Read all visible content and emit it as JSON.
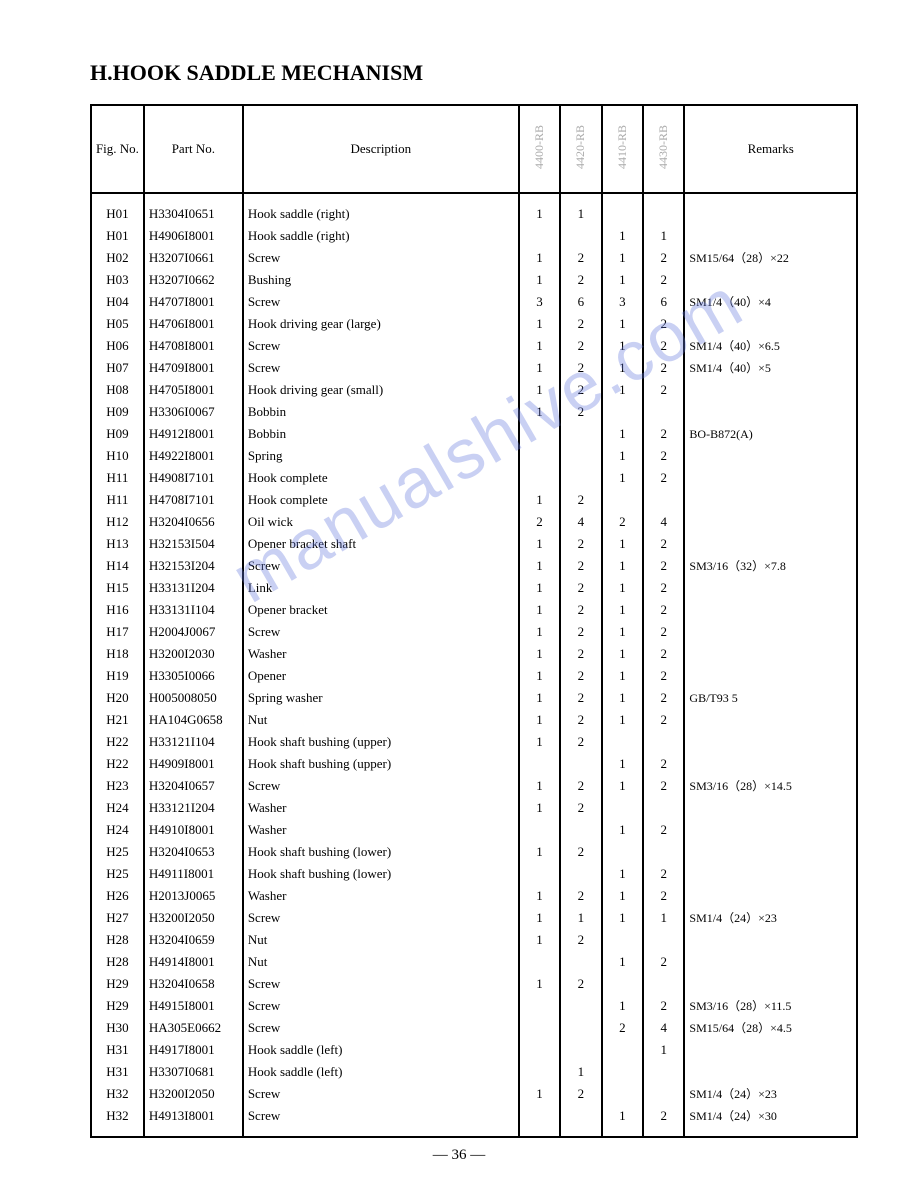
{
  "title": "H.HOOK SADDLE MECHANISM",
  "page_number": "— 36 —",
  "watermark_text": "manualshive.com",
  "columns": {
    "fig": "Fig. No.",
    "part": "Part No.",
    "desc": "Description",
    "q1": "4400-RB",
    "q2": "4420-RB",
    "q3": "4410-RB",
    "q4": "4430-RB",
    "remarks": "Remarks"
  },
  "rows": [
    {
      "fig": "H01",
      "part": "H3304I0651",
      "desc": "Hook saddle (right)",
      "q1": "1",
      "q2": "1",
      "q3": "",
      "q4": "",
      "remarks": ""
    },
    {
      "fig": "H01",
      "part": "H4906I8001",
      "desc": "Hook saddle (right)",
      "q1": "",
      "q2": "",
      "q3": "1",
      "q4": "1",
      "remarks": ""
    },
    {
      "fig": "H02",
      "part": "H3207I0661",
      "desc": "Screw",
      "q1": "1",
      "q2": "2",
      "q3": "1",
      "q4": "2",
      "remarks": "SM15/64（28）×22"
    },
    {
      "fig": "H03",
      "part": "H3207I0662",
      "desc": "Bushing",
      "q1": "1",
      "q2": "2",
      "q3": "1",
      "q4": "2",
      "remarks": ""
    },
    {
      "fig": "H04",
      "part": "H4707I8001",
      "desc": "Screw",
      "q1": "3",
      "q2": "6",
      "q3": "3",
      "q4": "6",
      "remarks": "SM1/4（40）×4"
    },
    {
      "fig": "H05",
      "part": "H4706I8001",
      "desc": "Hook driving gear (large)",
      "q1": "1",
      "q2": "2",
      "q3": "1",
      "q4": "2",
      "remarks": ""
    },
    {
      "fig": "H06",
      "part": "H4708I8001",
      "desc": "Screw",
      "q1": "1",
      "q2": "2",
      "q3": "1",
      "q4": "2",
      "remarks": "SM1/4（40）×6.5"
    },
    {
      "fig": "H07",
      "part": "H4709I8001",
      "desc": "Screw",
      "q1": "1",
      "q2": "2",
      "q3": "1",
      "q4": "2",
      "remarks": "SM1/4（40）×5"
    },
    {
      "fig": "H08",
      "part": "H4705I8001",
      "desc": "Hook driving gear (small)",
      "q1": "1",
      "q2": "2",
      "q3": "1",
      "q4": "2",
      "remarks": ""
    },
    {
      "fig": "H09",
      "part": "H3306I0067",
      "desc": "Bobbin",
      "q1": "1",
      "q2": "2",
      "q3": "",
      "q4": "",
      "remarks": ""
    },
    {
      "fig": "H09",
      "part": "H4912I8001",
      "desc": "Bobbin",
      "q1": "",
      "q2": "",
      "q3": "1",
      "q4": "2",
      "remarks": "BO-B872(A)"
    },
    {
      "fig": "H10",
      "part": "H4922I8001",
      "desc": "Spring",
      "q1": "",
      "q2": "",
      "q3": "1",
      "q4": "2",
      "remarks": ""
    },
    {
      "fig": "H11",
      "part": "H4908I7101",
      "desc": "Hook complete",
      "q1": "",
      "q2": "",
      "q3": "1",
      "q4": "2",
      "remarks": ""
    },
    {
      "fig": "H11",
      "part": "H4708I7101",
      "desc": "Hook complete",
      "q1": "1",
      "q2": "2",
      "q3": "",
      "q4": "",
      "remarks": ""
    },
    {
      "fig": "H12",
      "part": "H3204I0656",
      "desc": "Oil wick",
      "q1": "2",
      "q2": "4",
      "q3": "2",
      "q4": "4",
      "remarks": ""
    },
    {
      "fig": "H13",
      "part": "H32153I504",
      "desc": "Opener bracket shaft",
      "q1": "1",
      "q2": "2",
      "q3": "1",
      "q4": "2",
      "remarks": ""
    },
    {
      "fig": "H14",
      "part": "H32153I204",
      "desc": "Screw",
      "q1": "1",
      "q2": "2",
      "q3": "1",
      "q4": "2",
      "remarks": "SM3/16（32）×7.8"
    },
    {
      "fig": "H15",
      "part": "H33131I204",
      "desc": "Link",
      "q1": "1",
      "q2": "2",
      "q3": "1",
      "q4": "2",
      "remarks": ""
    },
    {
      "fig": "H16",
      "part": "H33131I104",
      "desc": "Opener bracket",
      "q1": "1",
      "q2": "2",
      "q3": "1",
      "q4": "2",
      "remarks": ""
    },
    {
      "fig": "H17",
      "part": "H2004J0067",
      "desc": "Screw",
      "q1": "1",
      "q2": "2",
      "q3": "1",
      "q4": "2",
      "remarks": ""
    },
    {
      "fig": "H18",
      "part": "H3200I2030",
      "desc": "Washer",
      "q1": "1",
      "q2": "2",
      "q3": "1",
      "q4": "2",
      "remarks": ""
    },
    {
      "fig": "H19",
      "part": "H3305I0066",
      "desc": "Opener",
      "q1": "1",
      "q2": "2",
      "q3": "1",
      "q4": "2",
      "remarks": ""
    },
    {
      "fig": "H20",
      "part": "H005008050",
      "desc": "Spring washer",
      "q1": "1",
      "q2": "2",
      "q3": "1",
      "q4": "2",
      "remarks": "GB/T93 5"
    },
    {
      "fig": "H21",
      "part": "HA104G0658",
      "desc": "Nut",
      "q1": "1",
      "q2": "2",
      "q3": "1",
      "q4": "2",
      "remarks": ""
    },
    {
      "fig": "H22",
      "part": "H33121I104",
      "desc": "Hook shaft bushing (upper)",
      "q1": "1",
      "q2": "2",
      "q3": "",
      "q4": "",
      "remarks": ""
    },
    {
      "fig": "H22",
      "part": "H4909I8001",
      "desc": "Hook shaft bushing (upper)",
      "q1": "",
      "q2": "",
      "q3": "1",
      "q4": "2",
      "remarks": ""
    },
    {
      "fig": "H23",
      "part": "H3204I0657",
      "desc": "Screw",
      "q1": "1",
      "q2": "2",
      "q3": "1",
      "q4": "2",
      "remarks": "SM3/16（28）×14.5"
    },
    {
      "fig": "H24",
      "part": "H33121I204",
      "desc": "Washer",
      "q1": "1",
      "q2": "2",
      "q3": "",
      "q4": "",
      "remarks": ""
    },
    {
      "fig": "H24",
      "part": "H4910I8001",
      "desc": "Washer",
      "q1": "",
      "q2": "",
      "q3": "1",
      "q4": "2",
      "remarks": ""
    },
    {
      "fig": "H25",
      "part": "H3204I0653",
      "desc": "Hook shaft bushing (lower)",
      "q1": "1",
      "q2": "2",
      "q3": "",
      "q4": "",
      "remarks": ""
    },
    {
      "fig": "H25",
      "part": "H4911I8001",
      "desc": "Hook shaft bushing (lower)",
      "q1": "",
      "q2": "",
      "q3": "1",
      "q4": "2",
      "remarks": ""
    },
    {
      "fig": "H26",
      "part": "H2013J0065",
      "desc": "Washer",
      "q1": "1",
      "q2": "2",
      "q3": "1",
      "q4": "2",
      "remarks": ""
    },
    {
      "fig": "H27",
      "part": "H3200I2050",
      "desc": "Screw",
      "q1": "1",
      "q2": "1",
      "q3": "1",
      "q4": "1",
      "remarks": "SM1/4（24）×23"
    },
    {
      "fig": "H28",
      "part": "H3204I0659",
      "desc": "Nut",
      "q1": "1",
      "q2": "2",
      "q3": "",
      "q4": "",
      "remarks": ""
    },
    {
      "fig": "H28",
      "part": "H4914I8001",
      "desc": "Nut",
      "q1": "",
      "q2": "",
      "q3": "1",
      "q4": "2",
      "remarks": ""
    },
    {
      "fig": "H29",
      "part": "H3204I0658",
      "desc": "Screw",
      "q1": "1",
      "q2": "2",
      "q3": "",
      "q4": "",
      "remarks": ""
    },
    {
      "fig": "H29",
      "part": "H4915I8001",
      "desc": "Screw",
      "q1": "",
      "q2": "",
      "q3": "1",
      "q4": "2",
      "remarks": "SM3/16（28）×11.5"
    },
    {
      "fig": "H30",
      "part": "HA305E0662",
      "desc": "Screw",
      "q1": "",
      "q2": "",
      "q3": "2",
      "q4": "4",
      "remarks": "SM15/64（28）×4.5"
    },
    {
      "fig": "H31",
      "part": "H4917I8001",
      "desc": "Hook saddle (left)",
      "q1": "",
      "q2": "",
      "q3": "",
      "q4": "1",
      "remarks": ""
    },
    {
      "fig": "H31",
      "part": "H3307I0681",
      "desc": "Hook saddle (left)",
      "q1": "",
      "q2": "1",
      "q3": "",
      "q4": "",
      "remarks": ""
    },
    {
      "fig": "H32",
      "part": "H3200I2050",
      "desc": "Screw",
      "q1": "1",
      "q2": "2",
      "q3": "",
      "q4": "",
      "remarks": "SM1/4（24）×23"
    },
    {
      "fig": "H32",
      "part": "H4913I8001",
      "desc": "Screw",
      "q1": "",
      "q2": "",
      "q3": "1",
      "q4": "2",
      "remarks": "SM1/4（24）×30"
    }
  ]
}
